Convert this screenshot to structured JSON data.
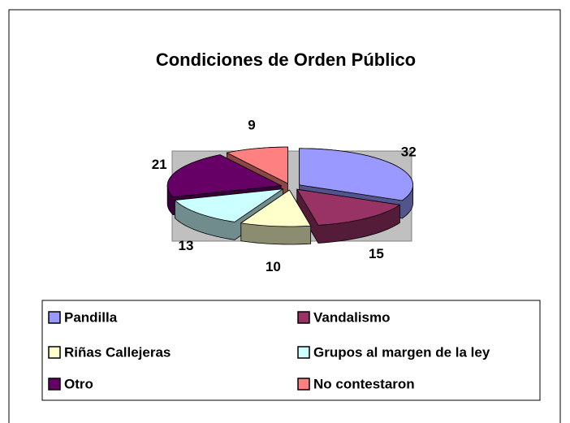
{
  "chart_data": {
    "type": "pie",
    "title": "Condiciones de Orden Público",
    "categories": [
      "Pandilla",
      "Vandalismo",
      "Riñas Callejeras",
      "Grupos al margen de la ley",
      "Otro",
      "No contestaron"
    ],
    "values": [
      32,
      15,
      10,
      13,
      21,
      9
    ],
    "colors": [
      "#9999ff",
      "#993366",
      "#ffffcc",
      "#ccffff",
      "#660066",
      "#ff8080"
    ],
    "legend": "bottom"
  }
}
